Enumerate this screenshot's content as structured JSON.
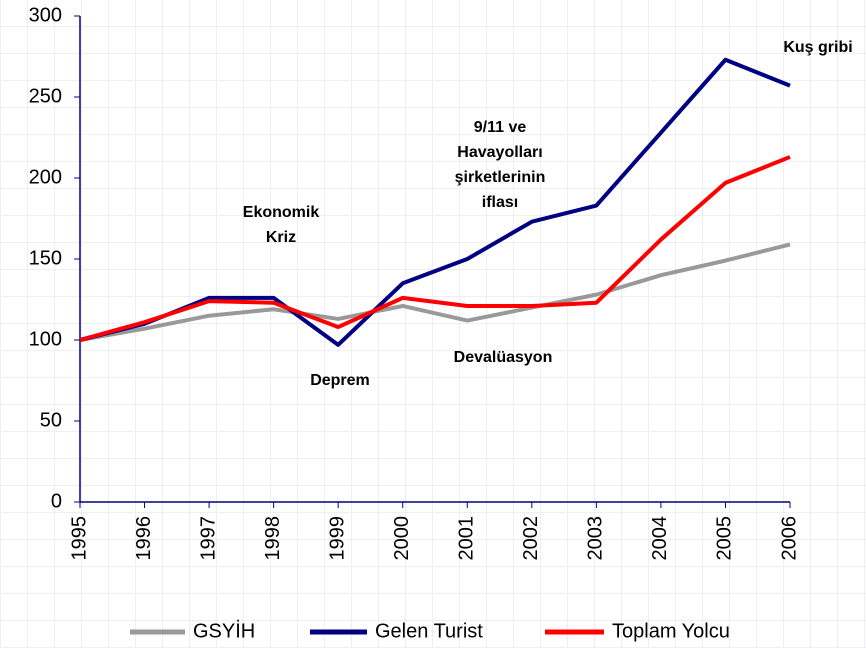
{
  "chart_data": {
    "type": "line",
    "x": [
      1995,
      1996,
      1997,
      1998,
      1999,
      2000,
      2001,
      2002,
      2003,
      2004,
      2005,
      2006
    ],
    "series": [
      {
        "name": "GSYİH",
        "color": "#999999",
        "values": [
          100,
          107,
          115,
          119,
          113,
          121,
          112,
          120,
          128,
          140,
          149,
          159
        ]
      },
      {
        "name": "Gelen Turist",
        "color": "#000080",
        "values": [
          100,
          110,
          126,
          126,
          97,
          135,
          150,
          173,
          183,
          228,
          273,
          257
        ]
      },
      {
        "name": "Toplam Yolcu",
        "color": "#ff0000",
        "values": [
          100,
          111,
          124,
          123,
          108,
          126,
          121,
          121,
          123,
          162,
          197,
          213
        ]
      }
    ],
    "xlim": [
      1995,
      2006
    ],
    "xticks": [
      1995,
      1996,
      1997,
      1998,
      1999,
      2000,
      2001,
      2002,
      2003,
      2004,
      2005,
      2006
    ],
    "ylim": [
      0,
      300
    ],
    "yticks": [
      0,
      50,
      100,
      150,
      200,
      250,
      300
    ],
    "annotations": [
      {
        "lines": [
          "Ekonomik",
          "Kriz"
        ]
      },
      {
        "lines": [
          "Deprem"
        ]
      },
      {
        "lines": [
          "9/11 ve",
          "Havayolları",
          "şirketlerinin",
          "iflası"
        ]
      },
      {
        "lines": [
          "Devalüasyon"
        ]
      },
      {
        "lines": [
          "Kuş gribi"
        ]
      }
    ],
    "legend": "bottom"
  }
}
